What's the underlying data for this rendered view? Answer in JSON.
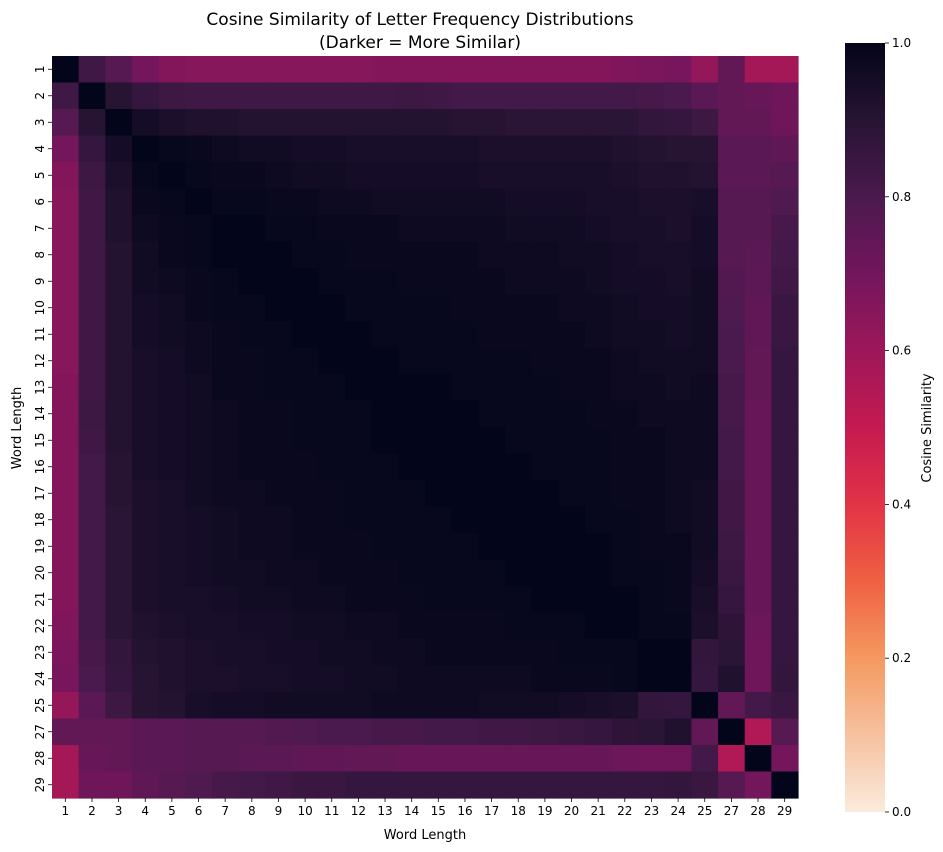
{
  "chart_data": {
    "type": "heatmap",
    "title": "Cosine Similarity of Letter Frequency Distributions",
    "subtitle": "(Darker = More Similar)",
    "xlabel": "Word Length",
    "ylabel": "Word Length",
    "colorbar_label": "Cosine Similarity",
    "colorbar_ticks": [
      "0.0",
      "0.2",
      "0.4",
      "0.6",
      "0.8",
      "1.0"
    ],
    "vmin": 0.0,
    "vmax": 1.0,
    "colormap": "rocket_r",
    "categories": [
      "1",
      "2",
      "3",
      "4",
      "5",
      "6",
      "7",
      "8",
      "9",
      "10",
      "11",
      "12",
      "13",
      "14",
      "15",
      "16",
      "17",
      "18",
      "19",
      "20",
      "21",
      "22",
      "23",
      "24",
      "25",
      "27",
      "28",
      "29"
    ],
    "values": [
      [
        1.0,
        0.83,
        0.77,
        0.7,
        0.66,
        0.65,
        0.65,
        0.65,
        0.65,
        0.65,
        0.65,
        0.65,
        0.66,
        0.66,
        0.66,
        0.66,
        0.66,
        0.66,
        0.66,
        0.66,
        0.66,
        0.67,
        0.68,
        0.69,
        0.62,
        0.74,
        0.58,
        0.58
      ],
      [
        0.83,
        1.0,
        0.9,
        0.86,
        0.84,
        0.83,
        0.83,
        0.83,
        0.83,
        0.83,
        0.83,
        0.83,
        0.83,
        0.84,
        0.83,
        0.82,
        0.82,
        0.82,
        0.82,
        0.82,
        0.82,
        0.82,
        0.81,
        0.8,
        0.76,
        0.74,
        0.73,
        0.71
      ],
      [
        0.77,
        0.9,
        1.0,
        0.95,
        0.93,
        0.92,
        0.92,
        0.91,
        0.91,
        0.91,
        0.91,
        0.91,
        0.91,
        0.91,
        0.91,
        0.9,
        0.9,
        0.89,
        0.89,
        0.89,
        0.89,
        0.89,
        0.87,
        0.86,
        0.84,
        0.74,
        0.74,
        0.71
      ],
      [
        0.7,
        0.86,
        0.95,
        1.0,
        0.99,
        0.98,
        0.97,
        0.96,
        0.96,
        0.95,
        0.95,
        0.94,
        0.94,
        0.94,
        0.94,
        0.94,
        0.93,
        0.93,
        0.93,
        0.93,
        0.93,
        0.92,
        0.91,
        0.9,
        0.9,
        0.76,
        0.76,
        0.75
      ],
      [
        0.66,
        0.84,
        0.93,
        0.99,
        1.0,
        0.99,
        0.98,
        0.98,
        0.97,
        0.96,
        0.96,
        0.95,
        0.95,
        0.95,
        0.95,
        0.95,
        0.94,
        0.94,
        0.94,
        0.94,
        0.94,
        0.93,
        0.92,
        0.92,
        0.91,
        0.76,
        0.76,
        0.77
      ],
      [
        0.65,
        0.83,
        0.92,
        0.98,
        0.99,
        1.0,
        0.99,
        0.99,
        0.98,
        0.98,
        0.97,
        0.97,
        0.96,
        0.96,
        0.96,
        0.96,
        0.96,
        0.95,
        0.95,
        0.95,
        0.94,
        0.94,
        0.93,
        0.93,
        0.94,
        0.77,
        0.77,
        0.79
      ],
      [
        0.65,
        0.83,
        0.92,
        0.97,
        0.98,
        0.99,
        1.0,
        1.0,
        0.99,
        0.99,
        0.98,
        0.98,
        0.98,
        0.97,
        0.97,
        0.97,
        0.97,
        0.96,
        0.96,
        0.96,
        0.95,
        0.94,
        0.94,
        0.93,
        0.95,
        0.77,
        0.77,
        0.81
      ],
      [
        0.65,
        0.83,
        0.91,
        0.96,
        0.98,
        0.99,
        1.0,
        1.0,
        1.0,
        0.99,
        0.99,
        0.98,
        0.98,
        0.98,
        0.98,
        0.98,
        0.97,
        0.97,
        0.97,
        0.96,
        0.96,
        0.95,
        0.94,
        0.94,
        0.95,
        0.77,
        0.76,
        0.82
      ],
      [
        0.65,
        0.83,
        0.91,
        0.96,
        0.97,
        0.98,
        0.99,
        1.0,
        1.0,
        1.0,
        0.99,
        0.99,
        0.99,
        0.98,
        0.98,
        0.98,
        0.98,
        0.97,
        0.97,
        0.97,
        0.96,
        0.95,
        0.95,
        0.94,
        0.96,
        0.78,
        0.76,
        0.83
      ],
      [
        0.65,
        0.83,
        0.91,
        0.95,
        0.96,
        0.98,
        0.99,
        0.99,
        1.0,
        1.0,
        1.0,
        0.99,
        0.99,
        0.99,
        0.99,
        0.98,
        0.98,
        0.98,
        0.98,
        0.97,
        0.97,
        0.96,
        0.95,
        0.95,
        0.96,
        0.79,
        0.75,
        0.85
      ],
      [
        0.65,
        0.83,
        0.91,
        0.95,
        0.96,
        0.97,
        0.98,
        0.99,
        0.99,
        1.0,
        1.0,
        1.0,
        0.99,
        0.99,
        0.99,
        0.99,
        0.98,
        0.98,
        0.98,
        0.98,
        0.97,
        0.96,
        0.96,
        0.95,
        0.96,
        0.8,
        0.75,
        0.85
      ],
      [
        0.65,
        0.83,
        0.91,
        0.94,
        0.95,
        0.97,
        0.98,
        0.98,
        0.99,
        0.99,
        1.0,
        1.0,
        1.0,
        0.99,
        0.99,
        0.99,
        0.99,
        0.99,
        0.98,
        0.98,
        0.98,
        0.97,
        0.96,
        0.96,
        0.96,
        0.8,
        0.74,
        0.86
      ],
      [
        0.66,
        0.83,
        0.91,
        0.94,
        0.95,
        0.96,
        0.98,
        0.98,
        0.99,
        0.99,
        0.99,
        1.0,
        1.0,
        1.0,
        1.0,
        0.99,
        0.99,
        0.99,
        0.99,
        0.98,
        0.98,
        0.97,
        0.97,
        0.96,
        0.97,
        0.81,
        0.74,
        0.86
      ],
      [
        0.66,
        0.84,
        0.91,
        0.94,
        0.95,
        0.96,
        0.97,
        0.98,
        0.98,
        0.99,
        0.99,
        0.99,
        1.0,
        1.0,
        1.0,
        1.0,
        0.99,
        0.99,
        0.99,
        0.99,
        0.98,
        0.98,
        0.97,
        0.97,
        0.97,
        0.81,
        0.73,
        0.86
      ],
      [
        0.66,
        0.83,
        0.91,
        0.94,
        0.95,
        0.96,
        0.97,
        0.98,
        0.98,
        0.99,
        0.99,
        0.99,
        1.0,
        1.0,
        1.0,
        1.0,
        1.0,
        0.99,
        0.99,
        0.99,
        0.99,
        0.98,
        0.98,
        0.97,
        0.97,
        0.82,
        0.73,
        0.86
      ],
      [
        0.66,
        0.82,
        0.9,
        0.94,
        0.95,
        0.96,
        0.97,
        0.98,
        0.98,
        0.98,
        0.99,
        0.99,
        0.99,
        1.0,
        1.0,
        1.0,
        1.0,
        1.0,
        0.99,
        0.99,
        0.99,
        0.98,
        0.98,
        0.97,
        0.97,
        0.82,
        0.73,
        0.86
      ],
      [
        0.66,
        0.82,
        0.9,
        0.93,
        0.94,
        0.96,
        0.97,
        0.97,
        0.98,
        0.98,
        0.98,
        0.99,
        0.99,
        0.99,
        1.0,
        1.0,
        1.0,
        1.0,
        1.0,
        0.99,
        0.99,
        0.98,
        0.98,
        0.97,
        0.96,
        0.83,
        0.73,
        0.86
      ],
      [
        0.66,
        0.82,
        0.89,
        0.93,
        0.94,
        0.95,
        0.96,
        0.97,
        0.97,
        0.98,
        0.98,
        0.99,
        0.99,
        0.99,
        0.99,
        1.0,
        1.0,
        1.0,
        1.0,
        1.0,
        0.99,
        0.99,
        0.98,
        0.97,
        0.96,
        0.83,
        0.73,
        0.86
      ],
      [
        0.66,
        0.82,
        0.89,
        0.93,
        0.94,
        0.95,
        0.96,
        0.97,
        0.97,
        0.98,
        0.98,
        0.98,
        0.99,
        0.99,
        0.99,
        0.99,
        1.0,
        1.0,
        1.0,
        1.0,
        1.0,
        0.99,
        0.98,
        0.98,
        0.96,
        0.84,
        0.73,
        0.86
      ],
      [
        0.66,
        0.82,
        0.89,
        0.93,
        0.94,
        0.95,
        0.96,
        0.96,
        0.97,
        0.97,
        0.98,
        0.98,
        0.98,
        0.99,
        0.99,
        0.99,
        0.99,
        1.0,
        1.0,
        1.0,
        1.0,
        0.99,
        0.99,
        0.98,
        0.95,
        0.85,
        0.73,
        0.86
      ],
      [
        0.66,
        0.82,
        0.89,
        0.93,
        0.94,
        0.94,
        0.95,
        0.96,
        0.96,
        0.97,
        0.97,
        0.98,
        0.98,
        0.98,
        0.99,
        0.99,
        0.99,
        0.99,
        1.0,
        1.0,
        1.0,
        1.0,
        0.99,
        0.98,
        0.94,
        0.86,
        0.73,
        0.86
      ],
      [
        0.67,
        0.82,
        0.89,
        0.92,
        0.93,
        0.94,
        0.94,
        0.95,
        0.95,
        0.96,
        0.96,
        0.97,
        0.97,
        0.98,
        0.98,
        0.98,
        0.98,
        0.99,
        0.99,
        0.99,
        1.0,
        1.0,
        0.99,
        0.99,
        0.93,
        0.88,
        0.72,
        0.86
      ],
      [
        0.68,
        0.81,
        0.87,
        0.91,
        0.92,
        0.93,
        0.94,
        0.94,
        0.95,
        0.95,
        0.96,
        0.96,
        0.97,
        0.97,
        0.98,
        0.98,
        0.98,
        0.98,
        0.98,
        0.99,
        0.99,
        0.99,
        1.0,
        1.0,
        0.87,
        0.89,
        0.71,
        0.86
      ],
      [
        0.69,
        0.8,
        0.86,
        0.9,
        0.92,
        0.93,
        0.93,
        0.94,
        0.94,
        0.95,
        0.95,
        0.96,
        0.96,
        0.97,
        0.97,
        0.97,
        0.97,
        0.97,
        0.98,
        0.98,
        0.98,
        0.99,
        1.0,
        1.0,
        0.86,
        0.92,
        0.71,
        0.87
      ],
      [
        0.62,
        0.76,
        0.84,
        0.9,
        0.91,
        0.94,
        0.95,
        0.95,
        0.96,
        0.96,
        0.96,
        0.96,
        0.97,
        0.97,
        0.97,
        0.97,
        0.96,
        0.96,
        0.96,
        0.95,
        0.94,
        0.93,
        0.87,
        0.86,
        1.0,
        0.74,
        0.82,
        0.85
      ],
      [
        0.74,
        0.74,
        0.74,
        0.76,
        0.76,
        0.77,
        0.77,
        0.77,
        0.78,
        0.79,
        0.8,
        0.8,
        0.81,
        0.81,
        0.82,
        0.82,
        0.83,
        0.83,
        0.84,
        0.85,
        0.86,
        0.88,
        0.89,
        0.92,
        0.74,
        1.0,
        0.55,
        0.77
      ],
      [
        0.58,
        0.73,
        0.74,
        0.76,
        0.76,
        0.77,
        0.77,
        0.76,
        0.76,
        0.75,
        0.75,
        0.74,
        0.74,
        0.73,
        0.73,
        0.73,
        0.73,
        0.73,
        0.73,
        0.73,
        0.73,
        0.72,
        0.71,
        0.71,
        0.82,
        0.55,
        1.0,
        0.7
      ],
      [
        0.58,
        0.71,
        0.71,
        0.75,
        0.77,
        0.79,
        0.81,
        0.82,
        0.83,
        0.85,
        0.85,
        0.86,
        0.86,
        0.86,
        0.86,
        0.86,
        0.86,
        0.86,
        0.86,
        0.86,
        0.86,
        0.86,
        0.86,
        0.87,
        0.85,
        0.77,
        0.7,
        1.0
      ]
    ]
  }
}
